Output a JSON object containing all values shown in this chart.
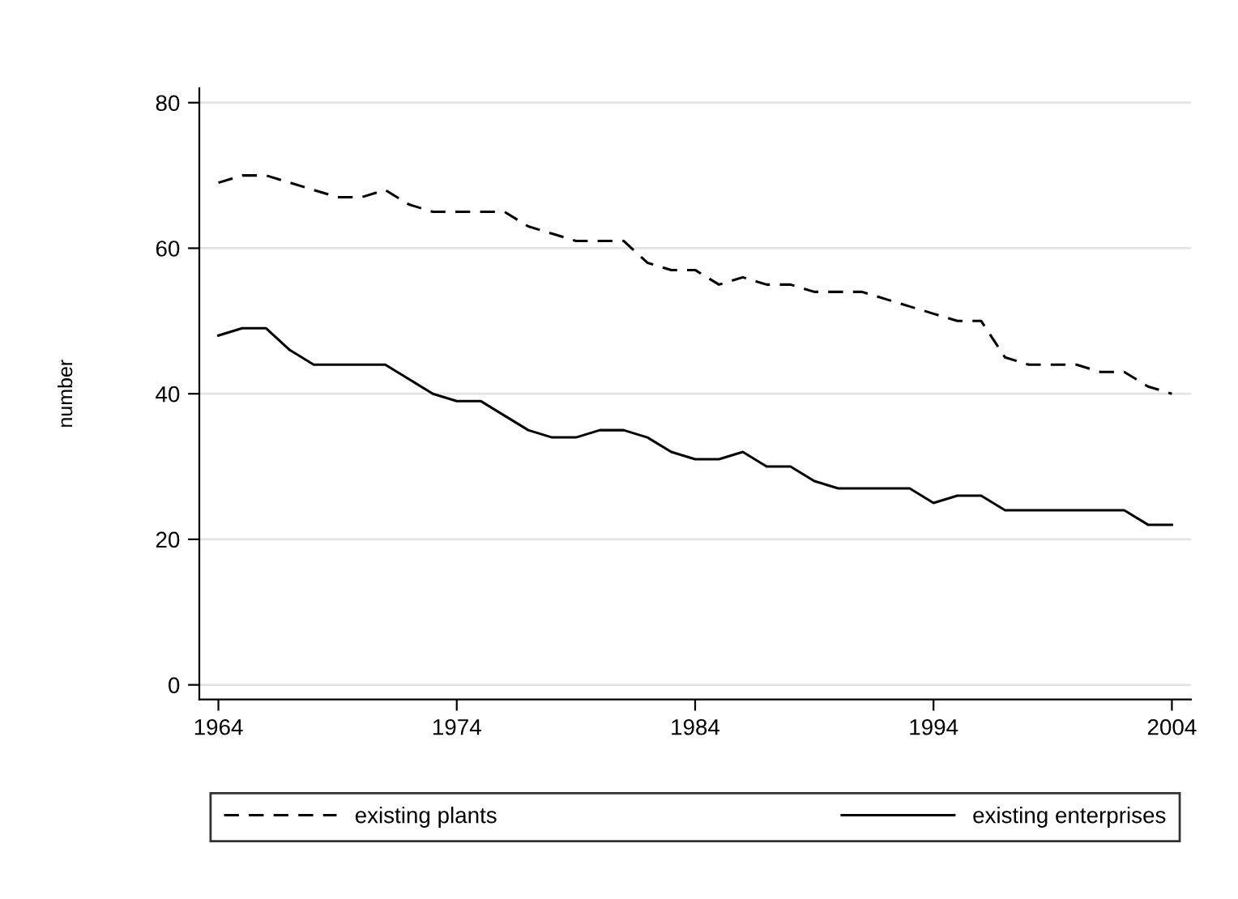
{
  "chart_data": {
    "type": "line",
    "ylabel": "number",
    "x": [
      1964,
      1965,
      1966,
      1967,
      1968,
      1969,
      1970,
      1971,
      1972,
      1973,
      1974,
      1975,
      1976,
      1977,
      1978,
      1979,
      1980,
      1981,
      1982,
      1983,
      1984,
      1985,
      1986,
      1987,
      1988,
      1989,
      1990,
      1991,
      1992,
      1993,
      1994,
      1995,
      1996,
      1997,
      1998,
      1999,
      2000,
      2001,
      2002,
      2003,
      2004
    ],
    "series": [
      {
        "name": "existing plants",
        "color": "#000000",
        "line_style": "dashed",
        "values": [
          69,
          70,
          70,
          69,
          68,
          67,
          67,
          68,
          66,
          65,
          65,
          65,
          65,
          63,
          62,
          61,
          61,
          61,
          58,
          57,
          57,
          55,
          56,
          55,
          55,
          54,
          54,
          54,
          53,
          52,
          51,
          50,
          50,
          45,
          44,
          44,
          44,
          43,
          43,
          41,
          40
        ]
      },
      {
        "name": "existing enterprises",
        "color": "#000000",
        "line_style": "solid",
        "values": [
          48,
          49,
          49,
          46,
          44,
          44,
          44,
          44,
          42,
          40,
          39,
          39,
          37,
          35,
          34,
          34,
          35,
          35,
          34,
          32,
          31,
          31,
          32,
          30,
          30,
          28,
          27,
          27,
          27,
          27,
          25,
          26,
          26,
          24,
          24,
          24,
          24,
          24,
          24,
          22,
          22
        ]
      }
    ],
    "xlim": [
      1963.2,
      2004.8
    ],
    "xticks": [
      1964,
      1974,
      1984,
      1994,
      2004
    ],
    "ylim": [
      -2,
      82
    ],
    "yticks": [
      0,
      20,
      40,
      60,
      80
    ],
    "grid": "y",
    "legend": "bottom"
  }
}
